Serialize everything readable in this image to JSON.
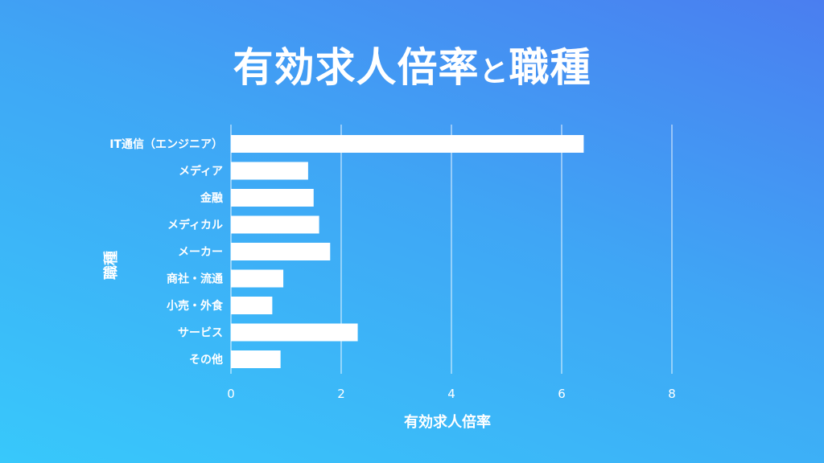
{
  "title": {
    "part1": "有効求人倍率",
    "part2": "と",
    "part3": "職種"
  },
  "chart_data": {
    "type": "bar",
    "orientation": "horizontal",
    "title": "有効求人倍率と職種",
    "xlabel": "有効求人倍率",
    "ylabel": "職種",
    "xlim": [
      0,
      8
    ],
    "xticks": [
      "0",
      "2",
      "4",
      "6",
      "8"
    ],
    "grid": true,
    "categories": [
      "IT通信（エンジニア）",
      "メディア",
      "金融",
      "メディカル",
      "メーカー",
      "商社・流通",
      "小売・外食",
      "サービス",
      "その他"
    ],
    "values": [
      6.4,
      1.4,
      1.5,
      1.6,
      1.8,
      0.95,
      0.75,
      2.3,
      0.9
    ]
  },
  "colors": {
    "bar": "#ffffff",
    "grid": "#ffffff",
    "text": "#ffffff"
  }
}
